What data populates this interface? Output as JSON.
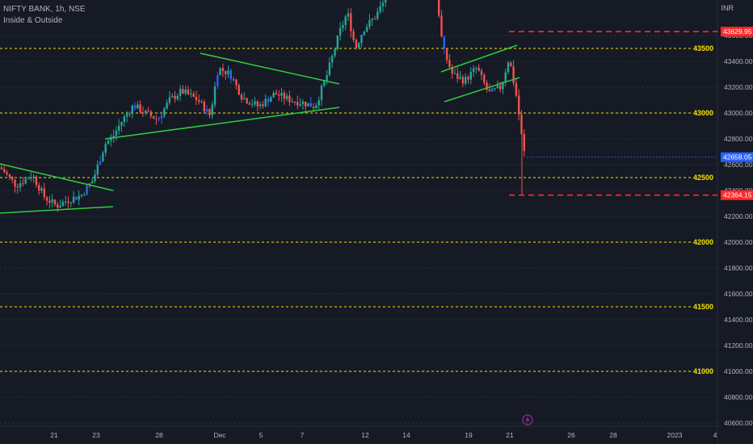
{
  "legend": {
    "symbol": "NIFTY BANK, 1h, NSE",
    "indicator": "Inside & Outside"
  },
  "currency": "INR",
  "colors": {
    "background": "#161a25",
    "up": "#26a69a",
    "down": "#ef5350",
    "inside_bar": "#2962ff",
    "trendline": "#2ecc40",
    "level": "#f5e400",
    "stop": "#ff2a2a",
    "grid": "#2f3a55"
  },
  "chart_data": {
    "type": "candlestick",
    "title": "NIFTY BANK, 1h, NSE",
    "ylim": [
      40550,
      44200
    ],
    "y_ticks": [
      40600,
      40800,
      41000,
      41200,
      41400,
      41600,
      41800,
      42000,
      42200,
      42400,
      42600,
      42800,
      43000,
      43200,
      43400,
      43600
    ],
    "x_ticks": [
      "21",
      "23",
      "28",
      "Dec",
      "5",
      "7",
      "12",
      "14",
      "19",
      "21",
      "26",
      "28",
      "2023",
      "4"
    ],
    "horizontal_levels": [
      43500,
      43000,
      42500,
      42000,
      41500,
      41000
    ],
    "price_markers": [
      {
        "label": "43629.95",
        "value": 43629.95,
        "style": "stop"
      },
      {
        "label": "42658.05",
        "value": 42658.05,
        "style": "current"
      },
      {
        "label": "42364.15",
        "value": 42364.15,
        "style": "stop"
      }
    ],
    "last_price": 42658.05
  },
  "footer_icon": "lightning-icon"
}
